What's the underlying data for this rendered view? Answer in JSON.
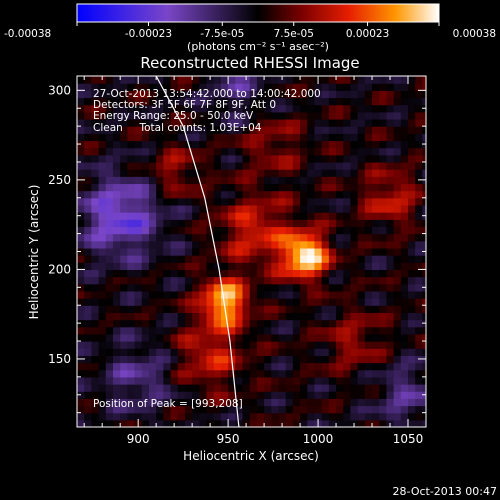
{
  "chart_data": {
    "type": "heatmap",
    "title": "Reconstructed RHESSI Image",
    "xlabel": "Heliocentric X (arcsec)",
    "ylabel": "Heliocentric Y (arcsec)",
    "xlim": [
      866,
      1060
    ],
    "ylim": [
      112,
      308
    ],
    "x_ticks": [
      900,
      950,
      1000,
      1050
    ],
    "y_ticks": [
      150,
      200,
      250,
      300
    ],
    "colorbar": {
      "range": [
        -0.00038,
        0.00038
      ],
      "ticks": [
        -0.00038,
        -0.00023,
        -7.5e-05,
        7.5e-05,
        0.00023,
        0.00038
      ],
      "tick_labels": [
        "-0.00038",
        "-0.00023",
        "-7.5e-05",
        "7.5e-05",
        "0.00023",
        "0.00038"
      ],
      "units_label": "(photons cm⁻² s⁻¹ asec⁻²)"
    },
    "annotations": [
      "27-Oct-2013 13:54:42.000 to 14:00:42.000",
      "Detectors: 3F 5F 6F 7F 8F 9F, Att 0",
      "Energy Range: 25.0 - 50.0 keV",
      "Clean     Total counts: 1.03E+04"
    ],
    "peak_label": "Position of Peak = [993,208]",
    "peak": [
      993,
      208
    ],
    "sources": [
      {
        "x": 993,
        "y": 208,
        "amplitude": 0.00038,
        "sigma": 9
      },
      {
        "x": 948,
        "y": 182,
        "amplitude": 0.00034,
        "sigma": 9
      },
      {
        "x": 965,
        "y": 222,
        "amplitude": 0.00017,
        "sigma": 14
      },
      {
        "x": 940,
        "y": 152,
        "amplitude": 0.00016,
        "sigma": 13
      },
      {
        "x": 1040,
        "y": 240,
        "amplitude": 0.00015,
        "sigma": 11
      },
      {
        "x": 920,
        "y": 255,
        "amplitude": 0.00012,
        "sigma": 10
      },
      {
        "x": 1020,
        "y": 160,
        "amplitude": 0.00011,
        "sigma": 12
      },
      {
        "x": 975,
        "y": 270,
        "amplitude": 0.0001,
        "sigma": 12
      }
    ],
    "negative_regions": [
      {
        "x": 890,
        "y": 230,
        "amplitude": -0.00022,
        "sigma": 16
      },
      {
        "x": 900,
        "y": 140,
        "amplitude": -0.00012,
        "sigma": 14
      },
      {
        "x": 1050,
        "y": 130,
        "amplitude": -0.00012,
        "sigma": 13
      },
      {
        "x": 955,
        "y": 300,
        "amplitude": -0.0001,
        "sigma": 12
      }
    ],
    "grid": false,
    "limb_curve": [
      [
        910,
        308
      ],
      [
        925,
        280
      ],
      [
        937,
        240
      ],
      [
        945,
        200
      ],
      [
        951,
        160
      ],
      [
        956,
        112
      ]
    ]
  },
  "footer_timestamp": "28-Oct-2013 00:47"
}
